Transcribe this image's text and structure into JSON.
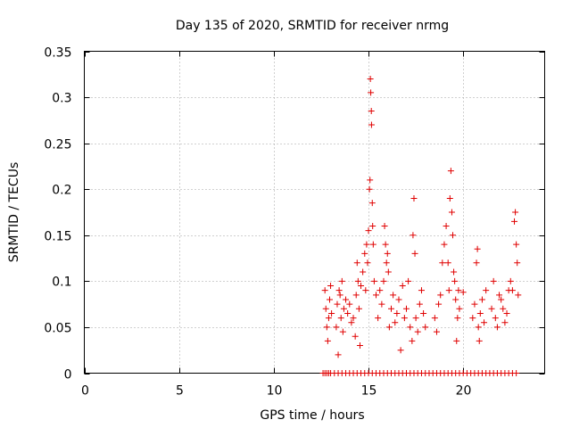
{
  "chart_data": {
    "type": "scatter",
    "title": "Day 135 of 2020, SRMTID for receiver nrmg",
    "xlabel": "GPS time / hours",
    "ylabel": "SRMTID / TECUs",
    "xlim": [
      0,
      24.3
    ],
    "ylim": [
      0,
      0.35
    ],
    "grid": true,
    "marker": "+",
    "color": "#e00000",
    "x_ticks": [
      0,
      5,
      10,
      15,
      20
    ],
    "x_tick_labels": [
      "0",
      "5",
      "10",
      "15",
      "20"
    ],
    "y_ticks": [
      0,
      0.05,
      0.1,
      0.15,
      0.2,
      0.25,
      0.3,
      0.35
    ],
    "y_tick_labels": [
      "0",
      "0.05",
      "0.1",
      "0.15",
      "0.2",
      "0.25",
      "0.3",
      "0.35"
    ],
    "series": [
      {
        "name": "SRMTID",
        "points": [
          [
            12.7,
            0.09
          ],
          [
            12.75,
            0.07
          ],
          [
            12.8,
            0.05
          ],
          [
            12.85,
            0.035
          ],
          [
            12.9,
            0.06
          ],
          [
            12.95,
            0.08
          ],
          [
            13.0,
            0.095
          ],
          [
            13.05,
            0.065
          ],
          [
            13.3,
            0.05
          ],
          [
            13.35,
            0.075
          ],
          [
            13.4,
            0.02
          ],
          [
            13.45,
            0.09
          ],
          [
            13.5,
            0.085
          ],
          [
            13.55,
            0.06
          ],
          [
            13.6,
            0.1
          ],
          [
            13.65,
            0.045
          ],
          [
            13.7,
            0.07
          ],
          [
            13.8,
            0.08
          ],
          [
            13.9,
            0.065
          ],
          [
            14.0,
            0.075
          ],
          [
            14.1,
            0.055
          ],
          [
            14.2,
            0.06
          ],
          [
            14.3,
            0.04
          ],
          [
            14.35,
            0.085
          ],
          [
            14.4,
            0.12
          ],
          [
            14.45,
            0.1
          ],
          [
            14.5,
            0.07
          ],
          [
            14.55,
            0.03
          ],
          [
            14.6,
            0.095
          ],
          [
            14.7,
            0.11
          ],
          [
            14.8,
            0.13
          ],
          [
            14.85,
            0.09
          ],
          [
            14.9,
            0.14
          ],
          [
            14.95,
            0.12
          ],
          [
            15.0,
            0.155
          ],
          [
            15.05,
            0.2
          ],
          [
            15.08,
            0.21
          ],
          [
            15.1,
            0.32
          ],
          [
            15.12,
            0.305
          ],
          [
            15.15,
            0.285
          ],
          [
            15.16,
            0.27
          ],
          [
            15.2,
            0.185
          ],
          [
            15.22,
            0.16
          ],
          [
            15.25,
            0.14
          ],
          [
            15.3,
            0.1
          ],
          [
            15.4,
            0.085
          ],
          [
            15.5,
            0.06
          ],
          [
            15.6,
            0.09
          ],
          [
            15.7,
            0.075
          ],
          [
            15.8,
            0.1
          ],
          [
            15.85,
            0.16
          ],
          [
            15.9,
            0.14
          ],
          [
            15.95,
            0.12
          ],
          [
            16.0,
            0.13
          ],
          [
            16.05,
            0.11
          ],
          [
            16.1,
            0.05
          ],
          [
            16.2,
            0.07
          ],
          [
            16.3,
            0.085
          ],
          [
            16.4,
            0.055
          ],
          [
            16.5,
            0.065
          ],
          [
            16.6,
            0.08
          ],
          [
            16.7,
            0.025
          ],
          [
            16.8,
            0.095
          ],
          [
            16.9,
            0.06
          ],
          [
            17.0,
            0.07
          ],
          [
            17.1,
            0.1
          ],
          [
            17.2,
            0.05
          ],
          [
            17.3,
            0.035
          ],
          [
            17.35,
            0.15
          ],
          [
            17.4,
            0.19
          ],
          [
            17.45,
            0.13
          ],
          [
            17.5,
            0.06
          ],
          [
            17.6,
            0.045
          ],
          [
            17.7,
            0.075
          ],
          [
            17.8,
            0.09
          ],
          [
            17.9,
            0.065
          ],
          [
            18.0,
            0.05
          ],
          [
            18.5,
            0.06
          ],
          [
            18.6,
            0.045
          ],
          [
            18.7,
            0.075
          ],
          [
            18.8,
            0.085
          ],
          [
            18.9,
            0.12
          ],
          [
            19.0,
            0.14
          ],
          [
            19.1,
            0.16
          ],
          [
            19.2,
            0.12
          ],
          [
            19.25,
            0.09
          ],
          [
            19.3,
            0.19
          ],
          [
            19.35,
            0.22
          ],
          [
            19.4,
            0.175
          ],
          [
            19.45,
            0.15
          ],
          [
            19.5,
            0.11
          ],
          [
            19.55,
            0.1
          ],
          [
            19.6,
            0.08
          ],
          [
            19.65,
            0.035
          ],
          [
            19.7,
            0.06
          ],
          [
            19.75,
            0.09
          ],
          [
            19.8,
            0.07
          ],
          [
            20.0,
            0.088
          ],
          [
            20.5,
            0.06
          ],
          [
            20.6,
            0.075
          ],
          [
            20.7,
            0.12
          ],
          [
            20.75,
            0.135
          ],
          [
            20.8,
            0.05
          ],
          [
            20.85,
            0.035
          ],
          [
            20.9,
            0.065
          ],
          [
            21.0,
            0.08
          ],
          [
            21.1,
            0.055
          ],
          [
            21.2,
            0.09
          ],
          [
            21.5,
            0.07
          ],
          [
            21.6,
            0.1
          ],
          [
            21.7,
            0.06
          ],
          [
            21.8,
            0.05
          ],
          [
            21.9,
            0.085
          ],
          [
            22.0,
            0.08
          ],
          [
            22.1,
            0.07
          ],
          [
            22.2,
            0.055
          ],
          [
            22.3,
            0.065
          ],
          [
            22.4,
            0.09
          ],
          [
            22.5,
            0.1
          ],
          [
            22.6,
            0.09
          ],
          [
            22.7,
            0.165
          ],
          [
            22.75,
            0.175
          ],
          [
            22.8,
            0.14
          ],
          [
            22.85,
            0.12
          ],
          [
            22.9,
            0.085
          ],
          [
            12.6,
            0
          ],
          [
            12.7,
            0
          ],
          [
            12.8,
            0
          ],
          [
            12.9,
            0
          ],
          [
            13.0,
            0
          ],
          [
            13.2,
            0
          ],
          [
            13.4,
            0
          ],
          [
            13.6,
            0
          ],
          [
            13.8,
            0
          ],
          [
            14.0,
            0
          ],
          [
            14.2,
            0
          ],
          [
            14.4,
            0
          ],
          [
            14.6,
            0
          ],
          [
            14.8,
            0
          ],
          [
            15.0,
            0
          ],
          [
            15.2,
            0
          ],
          [
            15.4,
            0
          ],
          [
            15.6,
            0
          ],
          [
            15.8,
            0
          ],
          [
            16.0,
            0
          ],
          [
            16.2,
            0
          ],
          [
            16.4,
            0
          ],
          [
            16.6,
            0
          ],
          [
            16.8,
            0
          ],
          [
            17.0,
            0
          ],
          [
            17.2,
            0
          ],
          [
            17.4,
            0
          ],
          [
            17.6,
            0
          ],
          [
            17.8,
            0
          ],
          [
            18.0,
            0
          ],
          [
            18.2,
            0
          ],
          [
            18.4,
            0
          ],
          [
            18.6,
            0
          ],
          [
            18.8,
            0
          ],
          [
            19.0,
            0
          ],
          [
            19.2,
            0
          ],
          [
            19.4,
            0
          ],
          [
            19.6,
            0
          ],
          [
            19.8,
            0
          ],
          [
            20.0,
            0
          ],
          [
            20.2,
            0
          ],
          [
            20.4,
            0
          ],
          [
            20.6,
            0
          ],
          [
            20.8,
            0
          ],
          [
            21.0,
            0
          ],
          [
            21.2,
            0
          ],
          [
            21.4,
            0
          ],
          [
            21.6,
            0
          ],
          [
            21.8,
            0
          ],
          [
            22.0,
            0
          ],
          [
            22.2,
            0
          ],
          [
            22.4,
            0
          ],
          [
            22.6,
            0
          ],
          [
            22.8,
            0
          ]
        ]
      }
    ]
  }
}
